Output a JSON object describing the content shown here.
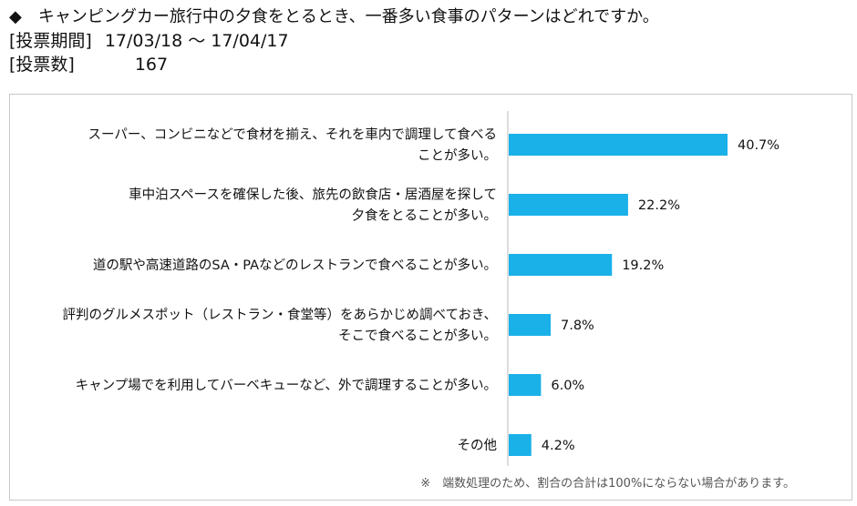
{
  "header": {
    "question": "◆　キャンピングカー旅行中の夕食をとるとき、一番多い食事のパターンはどれですか。",
    "period_label": "[投票期間]",
    "period_value": "17/03/18 〜 17/04/17",
    "count_label": "[投票数]",
    "count_value": "167"
  },
  "chart_data": {
    "type": "bar",
    "orientation": "horizontal",
    "title": "",
    "xlabel": "",
    "ylabel": "",
    "xlim": [
      0,
      100
    ],
    "grid": false,
    "bar_color": "#1ab0e8",
    "categories": [
      [
        "スーパー、コンビニなどで食材を揃え、それを車内で調理して食べる",
        "ことが多い。"
      ],
      [
        "車中泊スペースを確保した後、旅先の飲食店・居酒屋を探して",
        "夕食をとることが多い。"
      ],
      [
        "道の駅や高速道路のSA・PAなどのレストランで食べることが多い。"
      ],
      [
        "評判のグルメスポット（レストラン・食堂等）をあらかじめ調べておき、",
        "そこで食べることが多い。"
      ],
      [
        "キャンプ場でを利用してバーベキューなど、外で調理することが多い。"
      ],
      [
        "その他"
      ]
    ],
    "values": [
      40.7,
      22.2,
      19.2,
      7.8,
      6.0,
      4.2
    ],
    "value_labels": [
      "40.7%",
      "22.2%",
      "19.2%",
      "7.8%",
      "6.0%",
      "4.2%"
    ]
  },
  "footnote": "※　端数処理のため、割合の合計は100%にならない場合があります。"
}
